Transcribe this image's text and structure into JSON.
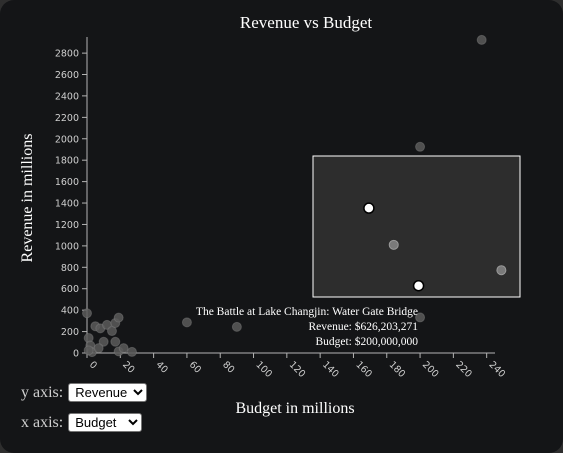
{
  "chart_data": {
    "type": "scatter",
    "title": "Revenue vs Budget",
    "xlabel": "Budget in millions",
    "ylabel": "Revenue in millions",
    "xlim": [
      0,
      245
    ],
    "ylim": [
      0,
      2950
    ],
    "x_ticks": [
      0,
      20,
      40,
      60,
      80,
      100,
      120,
      140,
      160,
      180,
      200,
      220,
      240
    ],
    "y_ticks": [
      0,
      200,
      400,
      600,
      800,
      1000,
      1200,
      1400,
      1600,
      1800,
      2000,
      2200,
      2400,
      2600,
      2800
    ],
    "points": [
      {
        "x": 237,
        "y": 2923
      },
      {
        "x": 200,
        "y": 1925
      },
      {
        "x": 200,
        "y": 332
      },
      {
        "x": 60,
        "y": 286
      },
      {
        "x": 90,
        "y": 244
      },
      {
        "x": 0,
        "y": 371
      },
      {
        "x": 1,
        "y": 140
      },
      {
        "x": 2,
        "y": 70
      },
      {
        "x": 3,
        "y": 8
      },
      {
        "x": 1,
        "y": 25
      },
      {
        "x": 5,
        "y": 250
      },
      {
        "x": 8,
        "y": 230
      },
      {
        "x": 12,
        "y": 262
      },
      {
        "x": 10,
        "y": 105
      },
      {
        "x": 7,
        "y": 45
      },
      {
        "x": 15,
        "y": 205
      },
      {
        "x": 17,
        "y": 280
      },
      {
        "x": 19,
        "y": 330
      },
      {
        "x": 17,
        "y": 105
      },
      {
        "x": 19,
        "y": 15
      },
      {
        "x": 22,
        "y": 45
      },
      {
        "x": 27,
        "y": 10
      }
    ],
    "tooltip": {
      "name": "The Battle at Lake Changjin: Water Gate Bridge",
      "revenue_text": "Revenue: $626,203,271",
      "budget_text": "Budget: $200,000,000"
    },
    "inset": {
      "points": [
        {
          "x": 0.27,
          "y": 0.37,
          "highlight": true
        },
        {
          "x": 0.39,
          "y": 0.63,
          "highlight": false
        },
        {
          "x": 0.51,
          "y": 0.92,
          "highlight": true
        },
        {
          "x": 0.91,
          "y": 0.81,
          "highlight": false
        }
      ]
    },
    "colors": {
      "background": "#141517",
      "point": "#5a5a5a",
      "point_stroke": "#8a8a8a",
      "inset_background": "#2d2d2d",
      "inset_border": "#ffffff",
      "highlight": "#ffffff",
      "axis": "#b4b4b4"
    }
  },
  "controls": {
    "y_axis_label": "y axis:",
    "y_axis_value": "Revenue",
    "x_axis_label": "x axis:",
    "x_axis_value": "Budget"
  }
}
